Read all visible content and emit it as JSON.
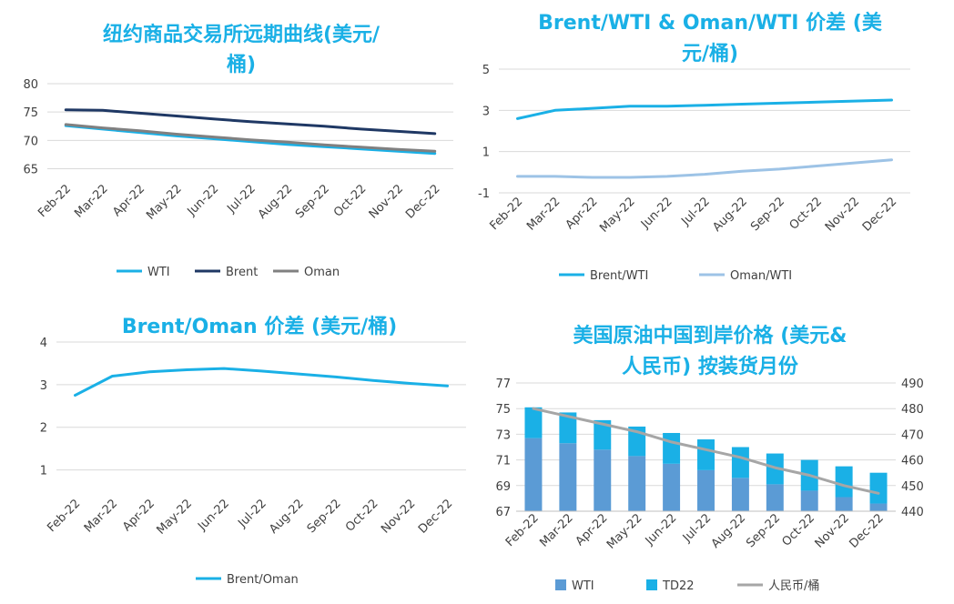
{
  "chart_data": [
    {
      "id": "futures-curve",
      "type": "line",
      "title_lines": [
        "纽约商品交易所远期曲线(美元/",
        "桶)"
      ],
      "categories": [
        "Feb-22",
        "Mar-22",
        "Apr-22",
        "May-22",
        "Jun-22",
        "Jul-22",
        "Aug-22",
        "Sep-22",
        "Oct-22",
        "Nov-22",
        "Dec-22"
      ],
      "series": [
        {
          "name": "WTI",
          "color": "#1ab0e6",
          "values": [
            72.6,
            72.0,
            71.4,
            70.8,
            70.3,
            69.8,
            69.3,
            68.9,
            68.5,
            68.1,
            67.7
          ]
        },
        {
          "name": "Brent",
          "color": "#1f3864",
          "values": [
            75.4,
            75.3,
            74.8,
            74.3,
            73.8,
            73.3,
            72.9,
            72.5,
            72.0,
            71.6,
            71.2
          ]
        },
        {
          "name": "Oman",
          "color": "#808080",
          "values": [
            72.8,
            72.2,
            71.7,
            71.1,
            70.6,
            70.1,
            69.7,
            69.2,
            68.8,
            68.4,
            68.1
          ]
        }
      ],
      "yticks": [
        65,
        70,
        75,
        80
      ],
      "ylim": [
        63,
        80
      ],
      "legend": "bottom"
    },
    {
      "id": "spreads",
      "type": "line",
      "title_lines": [
        "Brent/WTI & Oman/WTI 价差 (美",
        "元/桶)"
      ],
      "categories": [
        "Feb-22",
        "Mar-22",
        "Apr-22",
        "May-22",
        "Jun-22",
        "Jul-22",
        "Aug-22",
        "Sep-22",
        "Oct-22",
        "Nov-22",
        "Dec-22"
      ],
      "series": [
        {
          "name": "Brent/WTI",
          "color": "#1ab0e6",
          "values": [
            2.6,
            3.0,
            3.1,
            3.2,
            3.2,
            3.25,
            3.3,
            3.35,
            3.4,
            3.45,
            3.5
          ]
        },
        {
          "name": "Oman/WTI",
          "color": "#9dc3e6",
          "values": [
            -0.2,
            -0.2,
            -0.25,
            -0.25,
            -0.2,
            -0.1,
            0.05,
            0.15,
            0.3,
            0.45,
            0.6
          ]
        }
      ],
      "yticks": [
        -1,
        1,
        3,
        5
      ],
      "ylim": [
        -1,
        5
      ],
      "legend": "bottom"
    },
    {
      "id": "brent-oman",
      "type": "line",
      "title_lines": [
        "Brent/Oman 价差 (美元/桶)"
      ],
      "categories": [
        "Feb-22",
        "Mar-22",
        "Apr-22",
        "May-22",
        "Jun-22",
        "Jul-22",
        "Aug-22",
        "Sep-22",
        "Oct-22",
        "Nov-22",
        "Dec-22"
      ],
      "series": [
        {
          "name": "Brent/Oman",
          "color": "#1ab0e6",
          "values": [
            2.75,
            3.2,
            3.3,
            3.35,
            3.38,
            3.32,
            3.25,
            3.18,
            3.1,
            3.03,
            2.97
          ]
        }
      ],
      "yticks": [
        1,
        2,
        3,
        4
      ],
      "ylim": [
        0.5,
        4
      ],
      "legend": "bottom"
    },
    {
      "id": "landed-price",
      "type": "bar",
      "title_lines": [
        "美国原油中国到岸价格 (美元&",
        "人民币) 按装货月份"
      ],
      "categories": [
        "Feb-22",
        "Mar-22",
        "Apr-22",
        "May-22",
        "Jun-22",
        "Jul-22",
        "Aug-22",
        "Sep-22",
        "Oct-22",
        "Nov-22",
        "Dec-22"
      ],
      "series": [
        {
          "name": "WTI",
          "color": "#5b9bd5",
          "values": [
            72.7,
            72.3,
            71.8,
            71.3,
            70.7,
            70.2,
            69.6,
            69.1,
            68.6,
            68.1,
            67.6
          ]
        },
        {
          "name": "TD22",
          "color": "#1ab0e6",
          "values": [
            2.4,
            2.4,
            2.3,
            2.3,
            2.4,
            2.4,
            2.4,
            2.4,
            2.4,
            2.4,
            2.4
          ]
        },
        {
          "name": "人民币/桶",
          "color": "#a6a6a6",
          "axis": "right",
          "values": [
            480,
            477,
            474,
            471,
            467,
            464,
            461,
            457,
            454,
            450,
            447
          ]
        }
      ],
      "yticks_left": [
        67,
        69,
        71,
        73,
        75,
        77
      ],
      "ylim_left": [
        67,
        77
      ],
      "yticks_right": [
        440,
        450,
        460,
        470,
        480,
        490
      ],
      "ylim_right": [
        440,
        490
      ],
      "legend": "bottom"
    }
  ]
}
